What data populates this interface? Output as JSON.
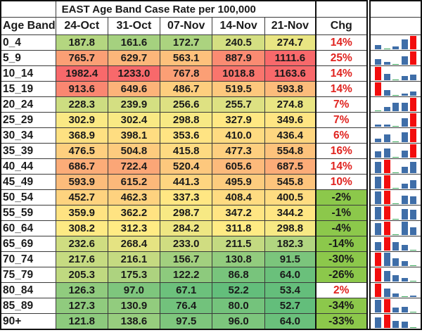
{
  "title": "EAST Age Band Case Rate per 100,000",
  "headers": {
    "age_band": "Age Band",
    "weeks": [
      "24-Oct",
      "31-Oct",
      "07-Nov",
      "14-Nov",
      "21-Nov"
    ],
    "chg": "Chg"
  },
  "colors": {
    "scale_low": "#63be7b",
    "scale_mid": "#ffeb84",
    "scale_high": "#f8696b",
    "chg_up_text": "#e0231f",
    "chg_down_fill": "#8cc84b",
    "spark_normal": "#3f6ea8",
    "spark_max": "#f20d0d",
    "spark_min": "#3aa65a"
  },
  "rows": [
    {
      "band": "0_4",
      "values": [
        "187.8",
        "161.6",
        "172.7",
        "240.5",
        "274.7"
      ],
      "chg": "14%",
      "dir": "up"
    },
    {
      "band": "5_9",
      "values": [
        "765.7",
        "629.7",
        "563.1",
        "887.9",
        "1111.6"
      ],
      "chg": "25%",
      "dir": "up"
    },
    {
      "band": "10_14",
      "values": [
        "1982.4",
        "1233.0",
        "767.8",
        "1018.8",
        "1163.6"
      ],
      "chg": "14%",
      "dir": "up"
    },
    {
      "band": "15_19",
      "values": [
        "913.6",
        "649.6",
        "486.7",
        "519.5",
        "593.8"
      ],
      "chg": "14%",
      "dir": "up"
    },
    {
      "band": "20_24",
      "values": [
        "228.3",
        "239.9",
        "256.6",
        "255.7",
        "274.8"
      ],
      "chg": "7%",
      "dir": "up"
    },
    {
      "band": "25_29",
      "values": [
        "302.9",
        "302.4",
        "298.8",
        "327.9",
        "349.6"
      ],
      "chg": "7%",
      "dir": "up"
    },
    {
      "band": "30_34",
      "values": [
        "368.9",
        "398.1",
        "353.6",
        "410.0",
        "436.4"
      ],
      "chg": "6%",
      "dir": "up"
    },
    {
      "band": "35_39",
      "values": [
        "476.5",
        "504.8",
        "415.8",
        "477.3",
        "554.8"
      ],
      "chg": "16%",
      "dir": "up"
    },
    {
      "band": "40_44",
      "values": [
        "686.7",
        "722.4",
        "520.4",
        "605.6",
        "687.5"
      ],
      "chg": "14%",
      "dir": "up"
    },
    {
      "band": "45_49",
      "values": [
        "593.9",
        "615.2",
        "441.3",
        "495.9",
        "545.8"
      ],
      "chg": "10%",
      "dir": "up"
    },
    {
      "band": "50_54",
      "values": [
        "452.7",
        "462.3",
        "337.3",
        "408.4",
        "400.5"
      ],
      "chg": "-2%",
      "dir": "down"
    },
    {
      "band": "55_59",
      "values": [
        "359.9",
        "362.2",
        "298.7",
        "347.2",
        "344.2"
      ],
      "chg": "-1%",
      "dir": "down"
    },
    {
      "band": "60_64",
      "values": [
        "308.2",
        "312.3",
        "284.2",
        "311.8",
        "298.8"
      ],
      "chg": "-4%",
      "dir": "down"
    },
    {
      "band": "65_69",
      "values": [
        "232.6",
        "268.4",
        "233.0",
        "211.5",
        "182.3"
      ],
      "chg": "-14%",
      "dir": "down"
    },
    {
      "band": "70_74",
      "values": [
        "217.6",
        "216.1",
        "156.7",
        "130.8",
        "91.5"
      ],
      "chg": "-30%",
      "dir": "down"
    },
    {
      "band": "75_79",
      "values": [
        "205.3",
        "175.3",
        "122.2",
        "86.8",
        "64.0"
      ],
      "chg": "-26%",
      "dir": "down"
    },
    {
      "band": "80_84",
      "values": [
        "126.3",
        "97.0",
        "67.1",
        "52.2",
        "53.4"
      ],
      "chg": "2%",
      "dir": "up"
    },
    {
      "band": "85_89",
      "values": [
        "127.3",
        "130.9",
        "76.4",
        "80.0",
        "52.7"
      ],
      "chg": "-34%",
      "dir": "down"
    },
    {
      "band": "90+",
      "values": [
        "121.8",
        "138.6",
        "97.5",
        "96.0",
        "64.0"
      ],
      "chg": "-33%",
      "dir": "down"
    }
  ]
}
